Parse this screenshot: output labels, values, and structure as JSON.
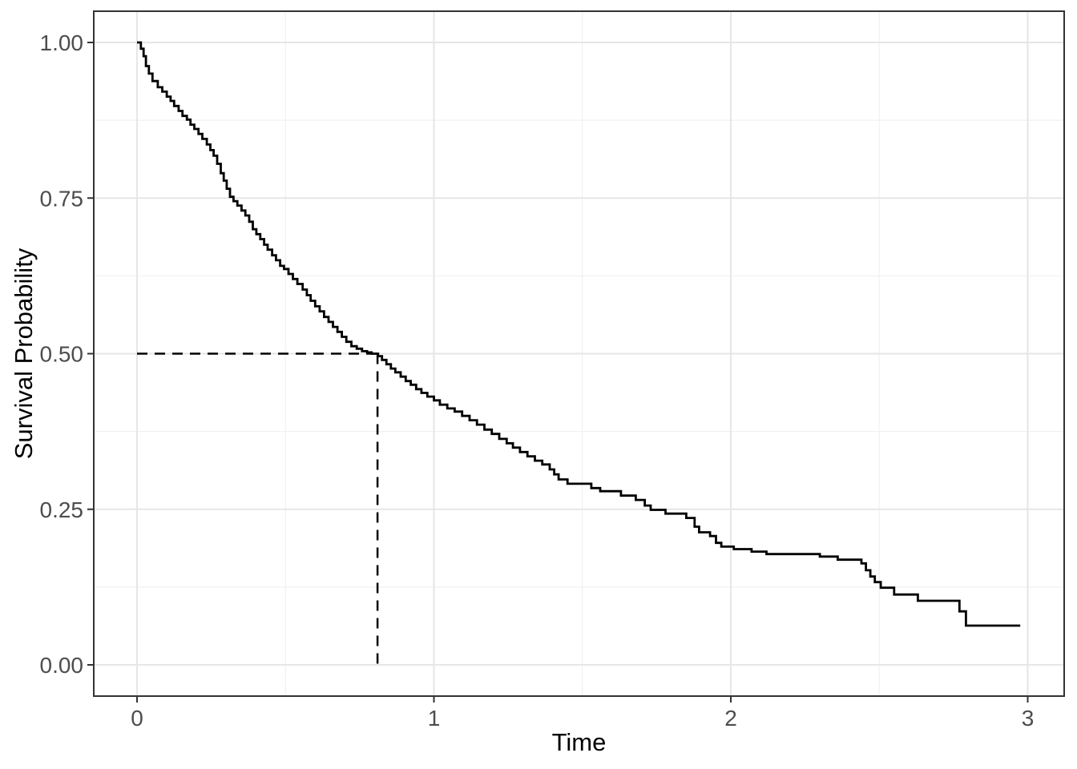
{
  "figure": {
    "background_color": "#FFFFFF",
    "panel_border_color": "#333333",
    "grid_major_color": "#E6E6E6",
    "grid_minor_color": "#F1F1F1",
    "tick_mark_color": "#333333",
    "tick_label_color": "#4D4D4D",
    "axis_title_color": "#000000",
    "curve_color": "#000000",
    "median_line_color": "#000000"
  },
  "chart_data": {
    "type": "line",
    "subtype": "kaplan-meier-survival-step",
    "title": "",
    "xlabel": "Time",
    "ylabel": "Survival Probability",
    "xlim": [
      0,
      3
    ],
    "ylim": [
      0,
      1
    ],
    "grid": "on",
    "legend": "none",
    "x_ticks": {
      "values": [
        0,
        1,
        2,
        3
      ],
      "labels": [
        "0",
        "1",
        "2",
        "3"
      ]
    },
    "y_ticks": {
      "values": [
        0,
        0.25,
        0.5,
        0.75,
        1
      ],
      "labels": [
        "0.00",
        "0.25",
        "0.50",
        "0.75",
        "1.00"
      ]
    },
    "x_minor_gridlines": [
      0.5,
      1.5,
      2.5
    ],
    "y_minor_gridlines": [
      0.125,
      0.375,
      0.625,
      0.875
    ],
    "median_annotation": {
      "time": 0.81,
      "survival": 0.5,
      "line_style": "dashed",
      "description": "dashed reference lines from axes meeting the curve at median survival"
    },
    "series": [
      {
        "name": "survival-estimate",
        "color": "#000000",
        "style": "step",
        "t": [
          0.0,
          0.013,
          0.022,
          0.03,
          0.04,
          0.052,
          0.07,
          0.085,
          0.1,
          0.113,
          0.125,
          0.14,
          0.153,
          0.168,
          0.18,
          0.193,
          0.207,
          0.22,
          0.235,
          0.247,
          0.258,
          0.27,
          0.282,
          0.292,
          0.302,
          0.313,
          0.325,
          0.338,
          0.352,
          0.365,
          0.378,
          0.39,
          0.402,
          0.415,
          0.428,
          0.44,
          0.455,
          0.468,
          0.482,
          0.495,
          0.51,
          0.525,
          0.54,
          0.558,
          0.572,
          0.585,
          0.6,
          0.615,
          0.63,
          0.645,
          0.66,
          0.675,
          0.69,
          0.705,
          0.722,
          0.74,
          0.758,
          0.775,
          0.79,
          0.812,
          0.825,
          0.84,
          0.855,
          0.87,
          0.888,
          0.905,
          0.922,
          0.94,
          0.958,
          0.978,
          1.0,
          1.02,
          1.045,
          1.07,
          1.095,
          1.12,
          1.145,
          1.17,
          1.195,
          1.22,
          1.245,
          1.266,
          1.29,
          1.315,
          1.34,
          1.365,
          1.39,
          1.405,
          1.42,
          1.45,
          1.53,
          1.56,
          1.63,
          1.68,
          1.71,
          1.73,
          1.78,
          1.85,
          1.878,
          1.893,
          1.93,
          1.95,
          1.968,
          2.01,
          2.07,
          2.12,
          2.3,
          2.36,
          2.44,
          2.455,
          2.47,
          2.485,
          2.505,
          2.55,
          2.63,
          2.77,
          2.792,
          2.975
        ],
        "s": [
          1.0,
          0.99,
          0.978,
          0.962,
          0.95,
          0.938,
          0.928,
          0.921,
          0.913,
          0.906,
          0.898,
          0.89,
          0.882,
          0.876,
          0.868,
          0.861,
          0.853,
          0.845,
          0.836,
          0.827,
          0.818,
          0.805,
          0.79,
          0.778,
          0.765,
          0.752,
          0.745,
          0.738,
          0.73,
          0.722,
          0.712,
          0.7,
          0.692,
          0.684,
          0.675,
          0.667,
          0.658,
          0.65,
          0.641,
          0.636,
          0.628,
          0.62,
          0.612,
          0.603,
          0.594,
          0.585,
          0.576,
          0.568,
          0.559,
          0.551,
          0.543,
          0.535,
          0.527,
          0.519,
          0.512,
          0.508,
          0.504,
          0.502,
          0.5,
          0.496,
          0.49,
          0.483,
          0.476,
          0.47,
          0.463,
          0.456,
          0.45,
          0.443,
          0.437,
          0.431,
          0.425,
          0.418,
          0.412,
          0.407,
          0.4,
          0.393,
          0.386,
          0.378,
          0.371,
          0.363,
          0.356,
          0.349,
          0.342,
          0.335,
          0.328,
          0.322,
          0.314,
          0.306,
          0.298,
          0.291,
          0.284,
          0.279,
          0.272,
          0.265,
          0.256,
          0.249,
          0.243,
          0.236,
          0.222,
          0.213,
          0.207,
          0.196,
          0.19,
          0.186,
          0.182,
          0.178,
          0.174,
          0.169,
          0.163,
          0.152,
          0.142,
          0.133,
          0.124,
          0.113,
          0.103,
          0.086,
          0.063,
          0.063
        ]
      }
    ]
  }
}
